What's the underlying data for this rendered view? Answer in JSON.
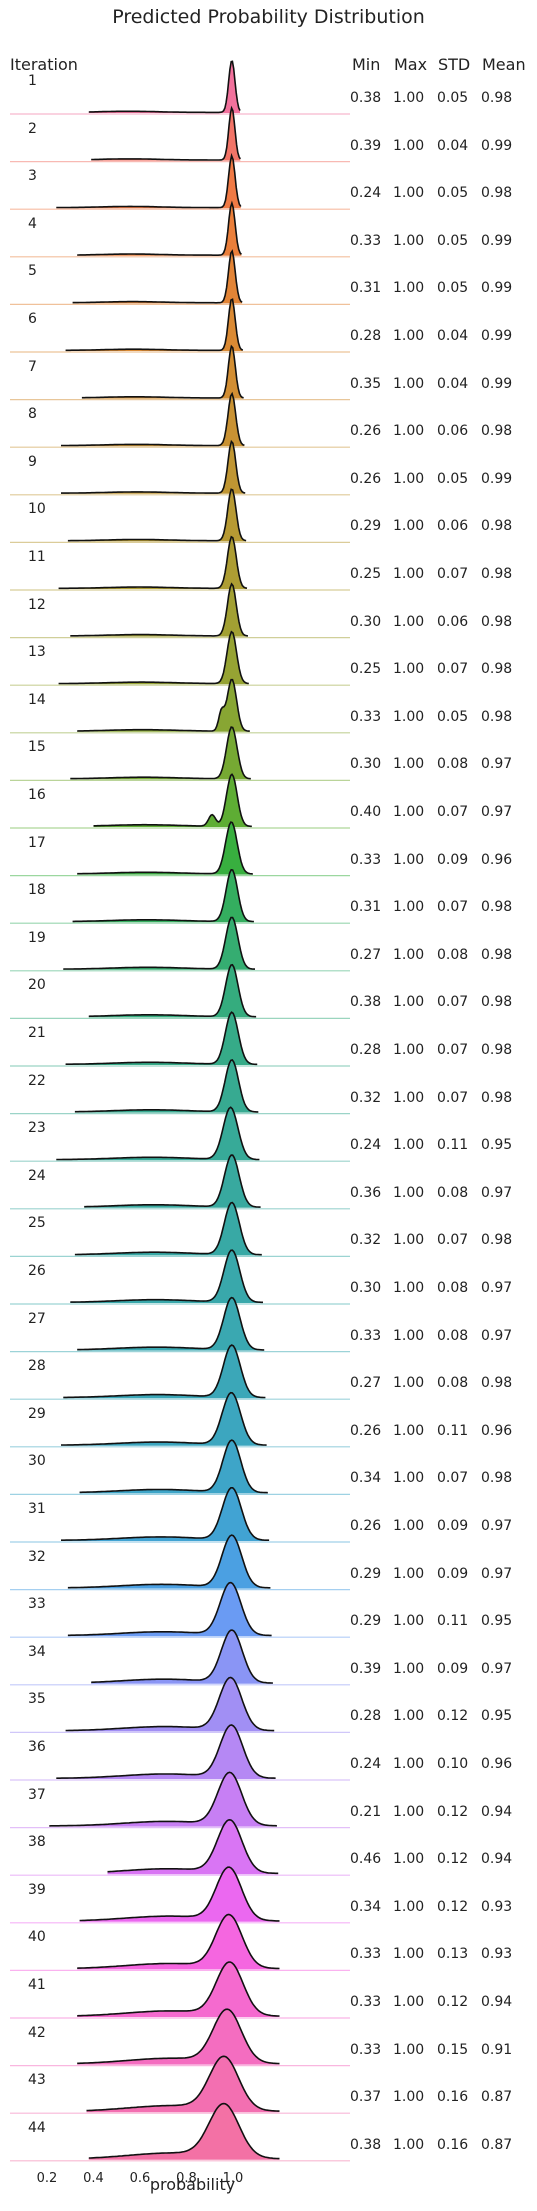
{
  "chart_data": {
    "type": "area",
    "subtype": "ridgeline",
    "title": "Predicted Probability Distribution",
    "xlabel": "probability",
    "row_header": "Iteration",
    "column_headers": [
      "Min",
      "Max",
      "STD",
      "Mean"
    ],
    "x_ticks": [
      "0.2",
      "0.4",
      "0.6",
      "0.8",
      "1.0"
    ],
    "xlim": [
      0.2,
      1.2
    ],
    "legend": "none",
    "grid": false,
    "rows": [
      {
        "iteration": "1",
        "min": "0.38",
        "max": "1.00",
        "std": "0.05",
        "mean": "0.98",
        "color": "#f1719c"
      },
      {
        "iteration": "2",
        "min": "0.39",
        "max": "1.00",
        "std": "0.04",
        "mean": "0.99",
        "color": "#f27467"
      },
      {
        "iteration": "3",
        "min": "0.24",
        "max": "1.00",
        "std": "0.05",
        "mean": "0.98",
        "color": "#f07a45"
      },
      {
        "iteration": "4",
        "min": "0.33",
        "max": "1.00",
        "std": "0.05",
        "mean": "0.99",
        "color": "#ea7f3b"
      },
      {
        "iteration": "5",
        "min": "0.31",
        "max": "1.00",
        "std": "0.05",
        "mean": "0.99",
        "color": "#e28436"
      },
      {
        "iteration": "6",
        "min": "0.28",
        "max": "1.00",
        "std": "0.04",
        "mean": "0.99",
        "color": "#da8a34"
      },
      {
        "iteration": "7",
        "min": "0.35",
        "max": "1.00",
        "std": "0.04",
        "mean": "0.99",
        "color": "#d28e33"
      },
      {
        "iteration": "8",
        "min": "0.26",
        "max": "1.00",
        "std": "0.06",
        "mean": "0.98",
        "color": "#c99233"
      },
      {
        "iteration": "9",
        "min": "0.26",
        "max": "1.00",
        "std": "0.05",
        "mean": "0.99",
        "color": "#c09633"
      },
      {
        "iteration": "10",
        "min": "0.29",
        "max": "1.00",
        "std": "0.06",
        "mean": "0.98",
        "color": "#b79a33"
      },
      {
        "iteration": "11",
        "min": "0.25",
        "max": "1.00",
        "std": "0.07",
        "mean": "0.98",
        "color": "#ad9d33"
      },
      {
        "iteration": "12",
        "min": "0.30",
        "max": "1.00",
        "std": "0.06",
        "mean": "0.98",
        "color": "#a2a033"
      },
      {
        "iteration": "13",
        "min": "0.25",
        "max": "1.00",
        "std": "0.07",
        "mean": "0.98",
        "color": "#96a333"
      },
      {
        "iteration": "14",
        "min": "0.33",
        "max": "1.00",
        "std": "0.05",
        "mean": "0.98",
        "color": "#88a633"
      },
      {
        "iteration": "15",
        "min": "0.30",
        "max": "1.00",
        "std": "0.08",
        "mean": "0.97",
        "color": "#76a933"
      },
      {
        "iteration": "16",
        "min": "0.40",
        "max": "1.00",
        "std": "0.07",
        "mean": "0.97",
        "color": "#5ead34"
      },
      {
        "iteration": "17",
        "min": "0.33",
        "max": "1.00",
        "std": "0.09",
        "mean": "0.96",
        "color": "#38af3f"
      },
      {
        "iteration": "18",
        "min": "0.31",
        "max": "1.00",
        "std": "0.07",
        "mean": "0.98",
        "color": "#34ae5f"
      },
      {
        "iteration": "19",
        "min": "0.27",
        "max": "1.00",
        "std": "0.08",
        "mean": "0.98",
        "color": "#35ad71"
      },
      {
        "iteration": "20",
        "min": "0.38",
        "max": "1.00",
        "std": "0.07",
        "mean": "0.98",
        "color": "#35ac7e"
      },
      {
        "iteration": "21",
        "min": "0.28",
        "max": "1.00",
        "std": "0.07",
        "mean": "0.98",
        "color": "#36ab88"
      },
      {
        "iteration": "22",
        "min": "0.32",
        "max": "1.00",
        "std": "0.07",
        "mean": "0.98",
        "color": "#37aa91"
      },
      {
        "iteration": "23",
        "min": "0.24",
        "max": "1.00",
        "std": "0.11",
        "mean": "0.95",
        "color": "#37aa98"
      },
      {
        "iteration": "24",
        "min": "0.36",
        "max": "1.00",
        "std": "0.08",
        "mean": "0.97",
        "color": "#38a99f"
      },
      {
        "iteration": "25",
        "min": "0.32",
        "max": "1.00",
        "std": "0.07",
        "mean": "0.98",
        "color": "#38a9a5"
      },
      {
        "iteration": "26",
        "min": "0.30",
        "max": "1.00",
        "std": "0.08",
        "mean": "0.97",
        "color": "#39a8ab"
      },
      {
        "iteration": "27",
        "min": "0.33",
        "max": "1.00",
        "std": "0.08",
        "mean": "0.97",
        "color": "#3aa8b1"
      },
      {
        "iteration": "28",
        "min": "0.27",
        "max": "1.00",
        "std": "0.08",
        "mean": "0.98",
        "color": "#3ba7b8"
      },
      {
        "iteration": "29",
        "min": "0.26",
        "max": "1.00",
        "std": "0.11",
        "mean": "0.96",
        "color": "#3ca6bf"
      },
      {
        "iteration": "30",
        "min": "0.34",
        "max": "1.00",
        "std": "0.07",
        "mean": "0.98",
        "color": "#3ea5c8"
      },
      {
        "iteration": "31",
        "min": "0.26",
        "max": "1.00",
        "std": "0.09",
        "mean": "0.97",
        "color": "#41a3d3"
      },
      {
        "iteration": "32",
        "min": "0.29",
        "max": "1.00",
        "std": "0.09",
        "mean": "0.97",
        "color": "#4ba0e2"
      },
      {
        "iteration": "33",
        "min": "0.29",
        "max": "1.00",
        "std": "0.11",
        "mean": "0.95",
        "color": "#6a9bf3"
      },
      {
        "iteration": "34",
        "min": "0.39",
        "max": "1.00",
        "std": "0.09",
        "mean": "0.97",
        "color": "#8a95f5"
      },
      {
        "iteration": "35",
        "min": "0.28",
        "max": "1.00",
        "std": "0.12",
        "mean": "0.95",
        "color": "#a18ff4"
      },
      {
        "iteration": "36",
        "min": "0.24",
        "max": "1.00",
        "std": "0.10",
        "mean": "0.96",
        "color": "#b588f4"
      },
      {
        "iteration": "37",
        "min": "0.21",
        "max": "1.00",
        "std": "0.12",
        "mean": "0.94",
        "color": "#c77ff4"
      },
      {
        "iteration": "38",
        "min": "0.46",
        "max": "1.00",
        "std": "0.12",
        "mean": "0.94",
        "color": "#d975f4"
      },
      {
        "iteration": "39",
        "min": "0.34",
        "max": "1.00",
        "std": "0.12",
        "mean": "0.93",
        "color": "#eb68f0"
      },
      {
        "iteration": "40",
        "min": "0.33",
        "max": "1.00",
        "std": "0.13",
        "mean": "0.93",
        "color": "#f566e0"
      },
      {
        "iteration": "41",
        "min": "0.33",
        "max": "1.00",
        "std": "0.12",
        "mean": "0.94",
        "color": "#f56acf"
      },
      {
        "iteration": "42",
        "min": "0.33",
        "max": "1.00",
        "std": "0.15",
        "mean": "0.91",
        "color": "#f46dc0"
      },
      {
        "iteration": "43",
        "min": "0.37",
        "max": "1.00",
        "std": "0.16",
        "mean": "0.87",
        "color": "#f36fb1"
      },
      {
        "iteration": "44",
        "min": "0.38",
        "max": "1.00",
        "std": "0.16",
        "mean": "0.87",
        "color": "#f371a5"
      }
    ]
  }
}
